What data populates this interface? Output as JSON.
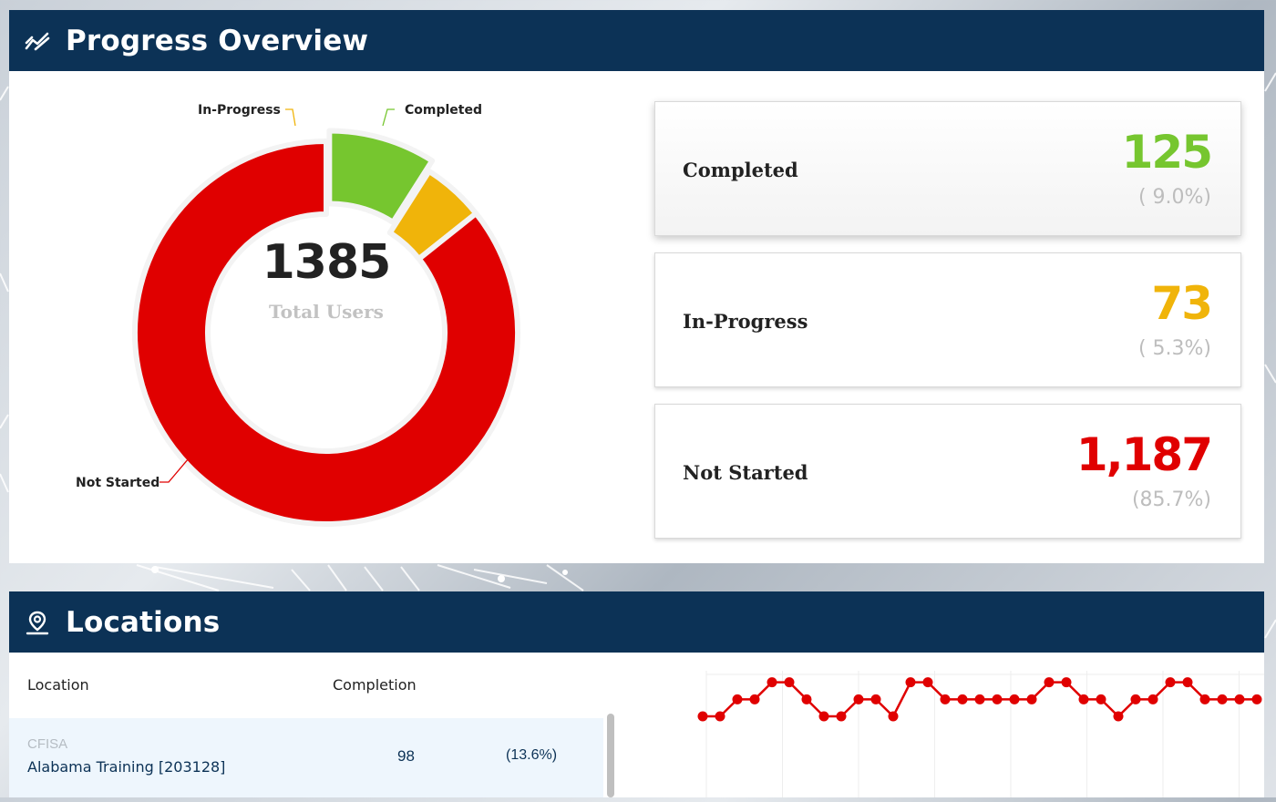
{
  "progress_overview": {
    "title": "Progress Overview",
    "icon": "chart-line-icon",
    "total_users": "1385",
    "total_label": "Total Users",
    "chart_data": {
      "type": "pie",
      "categories": [
        "Completed",
        "In-Progress",
        "Not Started"
      ],
      "values": [
        125,
        73,
        1187
      ],
      "colors": [
        "#76c62f",
        "#f0b40a",
        "#e00000"
      ]
    },
    "stats": [
      {
        "label": "Completed",
        "value": "125",
        "percent": "( 9.0%)",
        "color": "#76c62f"
      },
      {
        "label": "In-Progress",
        "value": "73",
        "percent": "( 5.3%)",
        "color": "#f0b40a"
      },
      {
        "label": "Not Started",
        "value": "1,187",
        "percent": "(85.7%)",
        "color": "#e00000"
      }
    ]
  },
  "locations": {
    "title": "Locations",
    "icon": "map-pin-icon",
    "columns": {
      "location": "Location",
      "completion": "Completion"
    },
    "rows": [
      {
        "org": "CFISA",
        "name": "Alabama Training [203128]",
        "count": "98",
        "percent": "(13.6%)"
      }
    ],
    "line_chart": {
      "type": "line",
      "color": "#e00000",
      "values": [
        3,
        3,
        4,
        4,
        5,
        5,
        4,
        3,
        3,
        4,
        4,
        3,
        5,
        5,
        4,
        4,
        4,
        4,
        4,
        4,
        5,
        5,
        4,
        4,
        3,
        4,
        4,
        5,
        5,
        4,
        4,
        4,
        4
      ]
    }
  },
  "colors": {
    "header_bg": "#0c3256",
    "accent_text": "#0c3256"
  }
}
